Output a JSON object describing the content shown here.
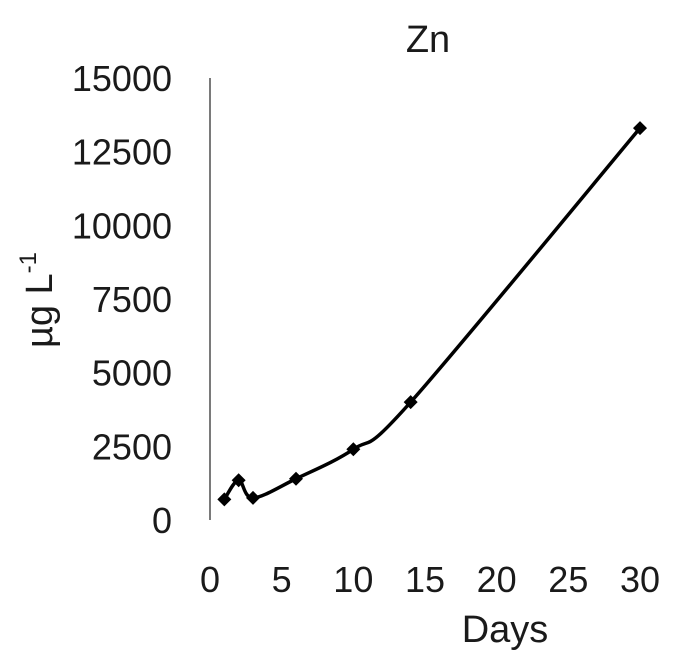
{
  "chart_data": {
    "type": "line",
    "title": "Zn",
    "xlabel": "Days",
    "ylabel": "µg L",
    "ylabel_superscript": "-1",
    "xlim": [
      0,
      30
    ],
    "ylim": [
      0,
      15000
    ],
    "x_tick_labels": [
      "0",
      "5",
      "10",
      "15",
      "20",
      "25",
      "30"
    ],
    "y_tick_labels": [
      "0",
      "2500",
      "5000",
      "7500",
      "10000",
      "12500",
      "15000"
    ],
    "grid": false,
    "legend": "none",
    "series": [
      {
        "x": [
          1,
          2,
          3,
          6,
          10,
          14,
          30
        ],
        "y": [
          700,
          1350,
          750,
          1400,
          2400,
          4000,
          13300
        ],
        "color": "#000000",
        "marker": "diamond",
        "smooth": true
      }
    ]
  }
}
